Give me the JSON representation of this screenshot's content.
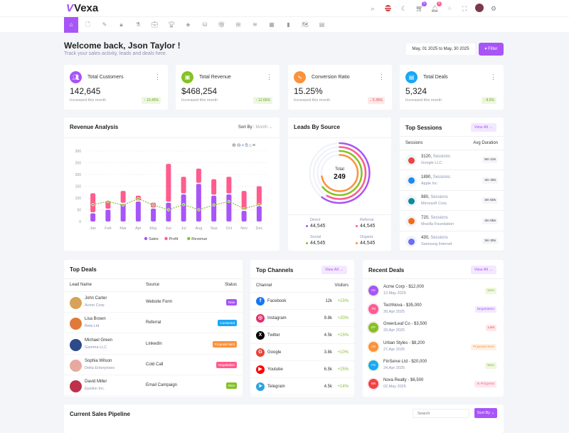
{
  "app": {
    "name": "Vexa",
    "header_icons": [
      "search-icon",
      "flag-us-icon",
      "moon-icon",
      "cart-icon",
      "bell-icon",
      "apps-icon",
      "fullscreen-icon",
      "avatar",
      "gear-icon"
    ],
    "cart_badge": "5",
    "bell_badge": "5"
  },
  "nav": {
    "icons": [
      "home",
      "file",
      "file-edit",
      "lock",
      "flask",
      "briefcase",
      "trophy",
      "badge",
      "database",
      "gift",
      "grid",
      "layers",
      "table",
      "bar-chart",
      "map",
      "layout"
    ]
  },
  "welcome": {
    "title": "Welcome back, Json Taylor !",
    "subtitle": "Track your sales activity, leads and deals here.",
    "date_range": "May, 01 2025 to May, 30 2025",
    "filter_label": "Filter"
  },
  "stats": [
    {
      "label": "Total Customers",
      "value": "142,645",
      "sub": "Increased this month",
      "change": "↑ 10.45%",
      "color": "#a855f7",
      "trend": "up"
    },
    {
      "label": "Total Revenue",
      "value": "$468,254",
      "sub": "Increased this month",
      "change": "↑ 12.65%",
      "color": "#84c225",
      "trend": "up"
    },
    {
      "label": "Conversion Ratio",
      "value": "15.25%",
      "sub": "Increased this month",
      "change": "↓ 5.35%",
      "color": "#fb923c",
      "trend": "down"
    },
    {
      "label": "Total Deals",
      "value": "5,324",
      "sub": "Increased this month",
      "change": "↑ 8.5%",
      "color": "#1aa7f5",
      "trend": "up"
    }
  ],
  "revenue": {
    "title": "Revenue Analysis",
    "sort_label": "Sort By :",
    "sort_value": "Month"
  },
  "chart_data": {
    "type": "bar",
    "categories": [
      "Jan",
      "Feb",
      "Mar",
      "Apr",
      "May",
      "Jun",
      "Jul",
      "Aug",
      "Sep",
      "Oct",
      "Nov",
      "Dec"
    ],
    "ylim": [
      0,
      300
    ],
    "yticks": [
      0,
      50,
      100,
      150,
      200,
      250,
      300
    ],
    "grid": true,
    "legend": "bottom",
    "series": [
      {
        "name": "Sales",
        "type": "bar",
        "stacked": true,
        "color": "#a855f7",
        "values": [
          35,
          50,
          75,
          85,
          55,
          80,
          115,
          160,
          110,
          115,
          45,
          65
        ]
      },
      {
        "name": "Profit",
        "type": "bar",
        "stacked": true,
        "color": "#ff5c8d",
        "values": [
          85,
          38,
          55,
          25,
          25,
          165,
          75,
          65,
          70,
          75,
          85,
          85
        ]
      },
      {
        "name": "Revenue",
        "type": "line",
        "color": "#84c225",
        "values": [
          72,
          85,
          70,
          97,
          70,
          50,
          72,
          50,
          70,
          85,
          55,
          72
        ]
      }
    ]
  },
  "leads": {
    "title": "Leads By Source",
    "total_label": "Total",
    "total": "249",
    "sources": [
      {
        "name": "Direct",
        "value": "44,545",
        "color": "#a855f7",
        "fill": 0.6
      },
      {
        "name": "Referral",
        "value": "44,545",
        "color": "#ff5c8d",
        "fill": 0.58
      },
      {
        "name": "Social",
        "value": "44,545",
        "color": "#84c225",
        "fill": 0.64
      },
      {
        "name": "Organic",
        "value": "44,545",
        "color": "#fb923c",
        "fill": 0.72
      }
    ]
  },
  "sessions": {
    "title": "Top Sessions",
    "view_all": "View All →",
    "col1": "Sessions",
    "col2": "Avg Duration",
    "word": "Sessions",
    "rows": [
      {
        "count": "3120,",
        "org": "Google LLC",
        "dur": "5m 12s",
        "color": "#e8453c"
      },
      {
        "count": "1890,",
        "org": "Apple Inc",
        "dur": "4m 45s",
        "color": "#1a8cf0"
      },
      {
        "count": "980,",
        "org": "Microsoft Corp",
        "dur": "3m 50s",
        "color": "#0f8a9e"
      },
      {
        "count": "720,",
        "org": "Mozilla Foundation",
        "dur": "4m 05s",
        "color": "#f26a1b"
      },
      {
        "count": "430,",
        "org": "Samsung Internet",
        "dur": "3m 30s",
        "color": "#6b6ef5"
      }
    ]
  },
  "deals": {
    "title": "Top Deals",
    "cols": [
      "Lead Name",
      "Source",
      "Status"
    ],
    "rows": [
      {
        "name": "John Carter",
        "company": "Acme Corp",
        "source": "Website Form",
        "status": "New",
        "color": "#a855f7",
        "avatar": "#d8a25a"
      },
      {
        "name": "Lisa Brown",
        "company": "Beta Ltd",
        "source": "Referral",
        "status": "Contacted",
        "color": "#1aa7f5",
        "avatar": "#e07a3a"
      },
      {
        "name": "Michael Green",
        "company": "Gamma LLC",
        "source": "LinkedIn",
        "status": "Proposal Sent",
        "color": "#fb923c",
        "avatar": "#2d4a8a"
      },
      {
        "name": "Sophia Wilson",
        "company": "Delta Enterprises",
        "source": "Cold Call",
        "status": "Negotiation",
        "color": "#ff5c8d",
        "avatar": "#e8a9a0"
      },
      {
        "name": "David Miller",
        "company": "Epsilon Inc.",
        "source": "Email Campaign",
        "status": "Won",
        "color": "#84c225",
        "avatar": "#c0304a"
      }
    ]
  },
  "channels": {
    "title": "Top Channels",
    "view_all": "View All →",
    "col1": "Channel",
    "col2": "Visitors",
    "rows": [
      {
        "name": "Facebook",
        "visitors": "12k",
        "change": "+15%",
        "color": "#1877f2",
        "glyph": "f"
      },
      {
        "name": "Instagram",
        "visitors": "9.8k",
        "change": "+20%",
        "color": "#e1306c",
        "glyph": "◎"
      },
      {
        "name": "Twitter",
        "visitors": "4.5k",
        "change": "+15%",
        "color": "#000000",
        "glyph": "X"
      },
      {
        "name": "Google",
        "visitors": "3.8k",
        "change": "+10%",
        "color": "#ea4335",
        "glyph": "G"
      },
      {
        "name": "Youtube",
        "visitors": "6.5k",
        "change": "+25%",
        "color": "#ff0000",
        "glyph": "▶"
      },
      {
        "name": "Telegram",
        "visitors": "4.5k",
        "change": "+14%",
        "color": "#2aa3e0",
        "glyph": "➤"
      }
    ]
  },
  "recent": {
    "title": "Recent Deals",
    "view_all": "View All →",
    "rows": [
      {
        "initials": "AC",
        "title": "Acme Corp - $12,000",
        "date": "12,May 2025",
        "status": "Won",
        "color": "#a855f7",
        "sfg": "#84c225",
        "sbg": "#eef7e0"
      },
      {
        "initials": "TN",
        "title": "TechNova - $35,000",
        "date": "30,Apr 2025",
        "status": "Negotiation",
        "color": "#ff5c8d",
        "sfg": "#a855f7",
        "sbg": "#f3e8ff"
      },
      {
        "initials": "GF",
        "title": "GreenLeaf Co - $3,500",
        "date": "29,Apr 2025",
        "status": "Lost",
        "color": "#84c225",
        "sfg": "#ef4444",
        "sbg": "#fde8e8"
      },
      {
        "initials": "US",
        "title": "Urban Styles - $8,200",
        "date": "27,Apr 2025",
        "status": "Proposal Sent",
        "color": "#fb923c",
        "sfg": "#fb923c",
        "sbg": "#fff1e4"
      },
      {
        "initials": "FS",
        "title": "FinServe Ltd - $20,000",
        "date": "24,Apr 2025",
        "status": "Won",
        "color": "#1aa7f5",
        "sfg": "#84c225",
        "sbg": "#eef7e0"
      },
      {
        "initials": "NR",
        "title": "Nova Realty - $6,500",
        "date": "02,May 2025",
        "status": "In Progress",
        "color": "#ef4444",
        "sfg": "#ff5c8d",
        "sbg": "#ffe6ee"
      }
    ]
  },
  "pipeline": {
    "title": "Current Sales Pipeline",
    "search_placeholder": "Search",
    "sort_label": "Sort By ⌄"
  }
}
